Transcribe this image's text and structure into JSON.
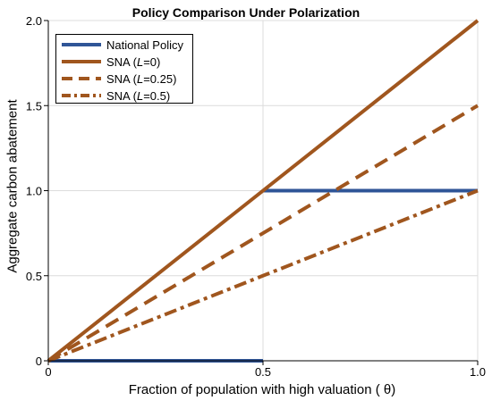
{
  "chart_data": {
    "type": "line",
    "title": "Policy Comparison Under Polarization",
    "xlabel": "Fraction of population with high valuation ( θ)",
    "ylabel": "Aggregate carbon abatement",
    "xlim": [
      0,
      1.0
    ],
    "ylim": [
      0,
      2.0
    ],
    "xticks": [
      "0",
      "0.5",
      "1.0"
    ],
    "yticks": [
      "0",
      "0.5",
      "1.0",
      "1.5",
      "2.0"
    ],
    "grid": true,
    "legend_position": "top-left",
    "series": [
      {
        "name": "National Policy",
        "style": "solid",
        "color": "#2f5597",
        "segments": [
          [
            [
              0,
              0
            ],
            [
              0.5,
              0
            ]
          ],
          [
            [
              0.5,
              1.0
            ],
            [
              1.0,
              1.0
            ]
          ]
        ]
      },
      {
        "name": "SNA (L=0)",
        "name_parts": [
          "SNA (",
          "L",
          "=0)"
        ],
        "style": "solid",
        "color": "#a0561e",
        "segments": [
          [
            [
              0,
              0
            ],
            [
              1.0,
              2.0
            ]
          ]
        ]
      },
      {
        "name": "SNA (L=0.25)",
        "name_parts": [
          "SNA (",
          "L",
          "=0.25)"
        ],
        "style": "dashed",
        "color": "#a0561e",
        "segments": [
          [
            [
              0,
              0
            ],
            [
              1.0,
              1.5
            ]
          ]
        ]
      },
      {
        "name": "SNA (L=0.5)",
        "name_parts": [
          "SNA (",
          "L",
          "=0.5)"
        ],
        "style": "dashdot",
        "color": "#a0561e",
        "segments": [
          [
            [
              0,
              0
            ],
            [
              1.0,
              1.0
            ]
          ]
        ]
      }
    ]
  }
}
